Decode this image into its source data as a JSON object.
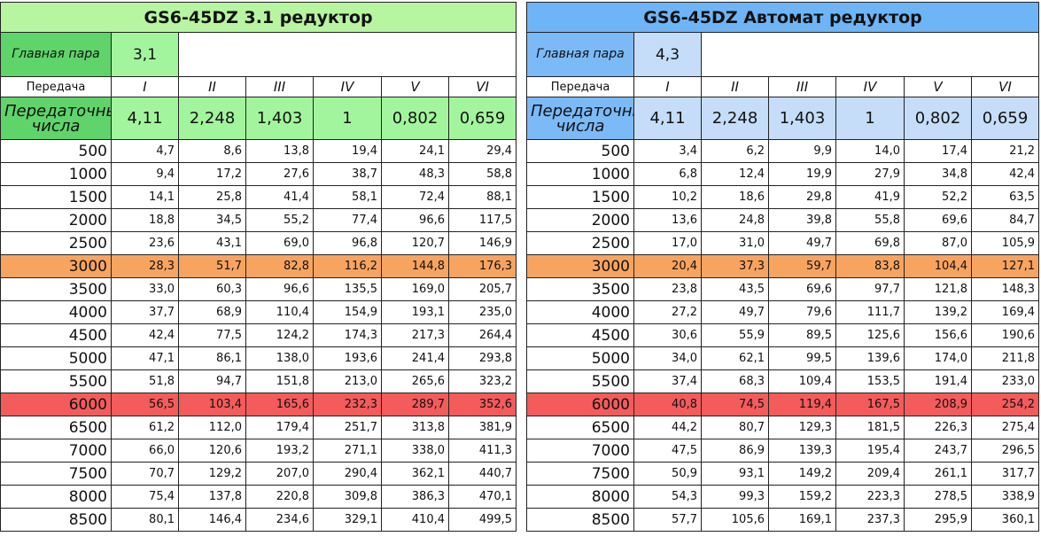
{
  "tables": [
    {
      "title": "GS6-45DZ 3.1 редуктор",
      "main_pair_label": "Главная пара",
      "main_pair_value": "3,1",
      "gear_label": "Передача",
      "gears": [
        "I",
        "II",
        "III",
        "IV",
        "V",
        "VI"
      ],
      "ratio_label": "Передаточные числа",
      "ratios": [
        "4,11",
        "2,248",
        "1,403",
        "1",
        "0,802",
        "0,659"
      ],
      "rows": [
        [
          "500",
          "4,7",
          "8,6",
          "13,8",
          "19,4",
          "24,1",
          "29,4"
        ],
        [
          "1000",
          "9,4",
          "17,2",
          "27,6",
          "38,7",
          "48,3",
          "58,8"
        ],
        [
          "1500",
          "14,1",
          "25,8",
          "41,4",
          "58,1",
          "72,4",
          "88,1"
        ],
        [
          "2000",
          "18,8",
          "34,5",
          "55,2",
          "77,4",
          "96,6",
          "117,5"
        ],
        [
          "2500",
          "23,6",
          "43,1",
          "69,0",
          "96,8",
          "120,7",
          "146,9"
        ],
        [
          "3000",
          "28,3",
          "51,7",
          "82,8",
          "116,2",
          "144,8",
          "176,3"
        ],
        [
          "3500",
          "33,0",
          "60,3",
          "96,6",
          "135,5",
          "169,0",
          "205,7"
        ],
        [
          "4000",
          "37,7",
          "68,9",
          "110,4",
          "154,9",
          "193,1",
          "235,0"
        ],
        [
          "4500",
          "42,4",
          "77,5",
          "124,2",
          "174,3",
          "217,3",
          "264,4"
        ],
        [
          "5000",
          "47,1",
          "86,1",
          "138,0",
          "193,6",
          "241,4",
          "293,8"
        ],
        [
          "5500",
          "51,8",
          "94,7",
          "151,8",
          "213,0",
          "265,6",
          "323,2"
        ],
        [
          "6000",
          "56,5",
          "103,4",
          "165,6",
          "232,3",
          "289,7",
          "352,6"
        ],
        [
          "6500",
          "61,2",
          "112,0",
          "179,4",
          "251,7",
          "313,8",
          "381,9"
        ],
        [
          "7000",
          "66,0",
          "120,6",
          "193,2",
          "271,1",
          "338,0",
          "411,3"
        ],
        [
          "7500",
          "70,7",
          "129,2",
          "207,0",
          "290,4",
          "362,1",
          "440,7"
        ],
        [
          "8000",
          "75,4",
          "137,8",
          "220,8",
          "309,8",
          "386,3",
          "470,1"
        ],
        [
          "8500",
          "80,1",
          "146,4",
          "234,6",
          "329,1",
          "410,4",
          "499,5"
        ]
      ]
    },
    {
      "title": "GS6-45DZ Автомат редуктор",
      "main_pair_label": "Главная пара",
      "main_pair_value": "4,3",
      "gear_label": "Передача",
      "gears": [
        "I",
        "II",
        "III",
        "IV",
        "V",
        "VI"
      ],
      "ratio_label": "Передаточные числа",
      "ratios": [
        "4,11",
        "2,248",
        "1,403",
        "1",
        "0,802",
        "0,659"
      ],
      "rows": [
        [
          "500",
          "3,4",
          "6,2",
          "9,9",
          "14,0",
          "17,4",
          "21,2"
        ],
        [
          "1000",
          "6,8",
          "12,4",
          "19,9",
          "27,9",
          "34,8",
          "42,4"
        ],
        [
          "1500",
          "10,2",
          "18,6",
          "29,8",
          "41,9",
          "52,2",
          "63,5"
        ],
        [
          "2000",
          "13,6",
          "24,8",
          "39,8",
          "55,8",
          "69,6",
          "84,7"
        ],
        [
          "2500",
          "17,0",
          "31,0",
          "49,7",
          "69,8",
          "87,0",
          "105,9"
        ],
        [
          "3000",
          "20,4",
          "37,3",
          "59,7",
          "83,8",
          "104,4",
          "127,1"
        ],
        [
          "3500",
          "23,8",
          "43,5",
          "69,6",
          "97,7",
          "121,8",
          "148,3"
        ],
        [
          "4000",
          "27,2",
          "49,7",
          "79,6",
          "111,7",
          "139,2",
          "169,4"
        ],
        [
          "4500",
          "30,6",
          "55,9",
          "89,5",
          "125,6",
          "156,6",
          "190,6"
        ],
        [
          "5000",
          "34,0",
          "62,1",
          "99,5",
          "139,6",
          "174,0",
          "211,8"
        ],
        [
          "5500",
          "37,4",
          "68,3",
          "109,4",
          "153,5",
          "191,4",
          "233,0"
        ],
        [
          "6000",
          "40,8",
          "74,5",
          "119,4",
          "167,5",
          "208,9",
          "254,2"
        ],
        [
          "6500",
          "44,2",
          "80,7",
          "129,3",
          "181,5",
          "226,3",
          "275,4"
        ],
        [
          "7000",
          "47,5",
          "86,9",
          "139,3",
          "195,4",
          "243,7",
          "296,5"
        ],
        [
          "7500",
          "50,9",
          "93,1",
          "149,2",
          "209,4",
          "261,1",
          "317,7"
        ],
        [
          "8000",
          "54,3",
          "99,3",
          "159,2",
          "223,3",
          "278,5",
          "338,9"
        ],
        [
          "8500",
          "57,7",
          "105,6",
          "169,1",
          "237,3",
          "295,9",
          "360,1"
        ]
      ]
    }
  ]
}
